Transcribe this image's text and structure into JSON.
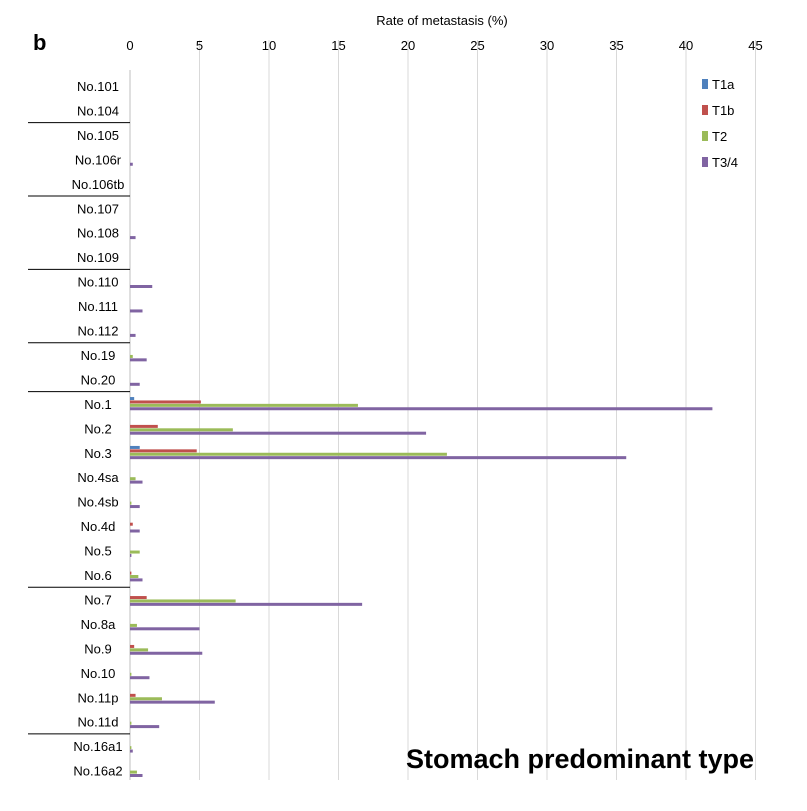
{
  "panel_label": "b",
  "subtitle": "Stomach predominant type",
  "colors": {
    "T1a": "#4f81bd",
    "T1b": "#c0504d",
    "T2": "#9bbb59",
    "T3/4": "#8064a2"
  },
  "chart_data": {
    "type": "bar",
    "orientation": "horizontal",
    "title": "",
    "xlabel": "Rate of metastasis (%)",
    "ylabel": "",
    "xlim": [
      0,
      45
    ],
    "xticks": [
      0,
      5,
      10,
      15,
      20,
      25,
      30,
      35,
      40,
      45
    ],
    "grid": true,
    "legend_position": "top-right",
    "categories": [
      "No.101",
      "No.104",
      "No.105",
      "No.106r",
      "No.106tb",
      "No.107",
      "No.108",
      "No.109",
      "No.110",
      "No.111",
      "No.112",
      "No.19",
      "No.20",
      "No.1",
      "No.2",
      "No.3",
      "No.4sa",
      "No.4sb",
      "No.4d",
      "No.5",
      "No.6",
      "No.7",
      "No.8a",
      "No.9",
      "No.10",
      "No.11p",
      "No.11d",
      "No.16a1",
      "No.16a2"
    ],
    "group_separators_after": [
      "No.104",
      "No.106tb",
      "No.109",
      "No.112",
      "No.20",
      "No.6",
      "No.11d"
    ],
    "series": [
      {
        "name": "T1a",
        "values": [
          0,
          0,
          0,
          0,
          0,
          0,
          0,
          0,
          0,
          0,
          0,
          0,
          0,
          0.3,
          0,
          0.7,
          0,
          0,
          0,
          0,
          0,
          0,
          0,
          0,
          0,
          0,
          0,
          0,
          0
        ]
      },
      {
        "name": "T1b",
        "values": [
          0,
          0,
          0,
          0,
          0,
          0,
          0,
          0,
          0,
          0,
          0,
          0,
          0,
          5.1,
          2.0,
          4.8,
          0,
          0,
          0.2,
          0,
          0.1,
          1.2,
          0,
          0.3,
          0,
          0.4,
          0,
          0,
          0
        ]
      },
      {
        "name": "T2",
        "values": [
          0,
          0,
          0,
          0,
          0,
          0,
          0,
          0,
          0,
          0,
          0,
          0.2,
          0,
          16.4,
          7.4,
          22.8,
          0.4,
          0.1,
          0,
          0.7,
          0.6,
          7.6,
          0.5,
          1.3,
          0.1,
          2.3,
          0.1,
          0.1,
          0.5
        ]
      },
      {
        "name": "T3/4",
        "values": [
          0,
          0,
          0,
          0.2,
          0,
          0,
          0.4,
          0,
          1.6,
          0.9,
          0.4,
          1.2,
          0.7,
          41.9,
          21.3,
          35.7,
          0.9,
          0.7,
          0.7,
          0.1,
          0.9,
          16.7,
          5.0,
          5.2,
          1.4,
          6.1,
          2.1,
          0.2,
          0.9
        ]
      }
    ]
  }
}
